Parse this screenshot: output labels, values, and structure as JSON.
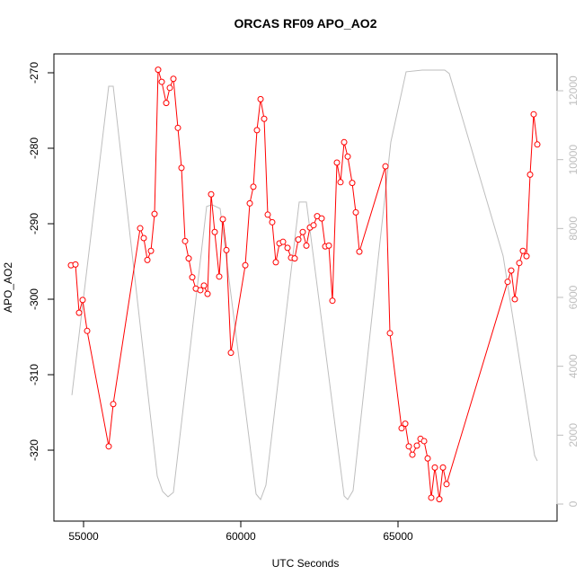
{
  "chart_data": {
    "type": "line",
    "title": "ORCAS RF09 APO_AO2",
    "x_label": "UTC Seconds",
    "y_label": "APO_AO2",
    "xlim": [
      54057,
      70057
    ],
    "xticks": [
      55000,
      60000,
      65000
    ],
    "ylim": [
      -329.4,
      -267.5
    ],
    "yticks": [
      -320,
      -310,
      -300,
      -290,
      -280,
      -270
    ],
    "y2lim": [
      -496,
      13070
    ],
    "y2ticks": [
      0,
      2000,
      4000,
      6000,
      8000,
      10000,
      12000
    ],
    "y2_color": "#bebebe",
    "series": [
      {
        "color": "#bebebe",
        "axis": "y2",
        "markers": false,
        "x": [
          54629,
          55800,
          55943,
          57343,
          57514,
          57686,
          57857,
          58914,
          59086,
          59343,
          60486,
          60629,
          60800,
          61857,
          62086,
          63286,
          63400,
          63571,
          64771,
          65257,
          65771,
          66486,
          66629,
          68343,
          69343,
          69429
        ],
        "values": [
          3160,
          12130,
          12130,
          810,
          365,
          210,
          340,
          8640,
          8690,
          8580,
          290,
          130,
          550,
          8770,
          8770,
          235,
          130,
          390,
          10510,
          12550,
          12600,
          12600,
          12500,
          7200,
          1410,
          1250
        ]
      },
      {
        "color": "#ff0000",
        "axis": "y",
        "markers": true,
        "x": [
          54600,
          54743,
          54857,
          54971,
          55114,
          55800,
          55943,
          56800,
          56914,
          57029,
          57143,
          57257,
          57371,
          57486,
          57629,
          57743,
          57857,
          58000,
          58114,
          58229,
          58343,
          58457,
          58571,
          58714,
          58829,
          58943,
          59057,
          59171,
          59314,
          59429,
          59543,
          59686,
          60143,
          60286,
          60400,
          60514,
          60629,
          60743,
          60857,
          60999,
          61114,
          61229,
          61343,
          61486,
          61600,
          61714,
          61829,
          61971,
          62086,
          62200,
          62314,
          62429,
          62571,
          62686,
          62800,
          62914,
          63057,
          63171,
          63286,
          63400,
          63543,
          63657,
          63771,
          64600,
          64743,
          65114,
          65229,
          65343,
          65457,
          65600,
          65714,
          65829,
          65943,
          66057,
          66171,
          66314,
          66429,
          66543,
          68486,
          68600,
          68714,
          68857,
          68971,
          69086,
          69200,
          69314,
          69429
        ],
        "values": [
          -295.5,
          -295.4,
          -301.8,
          -300.1,
          -304.2,
          -319.5,
          -313.9,
          -290.6,
          -291.9,
          -294.8,
          -293.6,
          -288.7,
          -269.6,
          -271.2,
          -274.0,
          -272.0,
          -270.8,
          -277.3,
          -282.6,
          -292.3,
          -294.6,
          -297.1,
          -298.6,
          -298.8,
          -298.2,
          -299.3,
          -286.1,
          -291.1,
          -297.0,
          -289.4,
          -293.5,
          -307.1,
          -295.5,
          -287.3,
          -285.1,
          -277.6,
          -273.5,
          -276.1,
          -288.8,
          -289.8,
          -295.1,
          -292.6,
          -292.4,
          -293.2,
          -294.5,
          -294.6,
          -292.1,
          -291.1,
          -292.9,
          -290.5,
          -290.2,
          -289.0,
          -289.3,
          -293.0,
          -292.9,
          -300.2,
          -281.9,
          -284.5,
          -279.2,
          -281.1,
          -284.6,
          -288.5,
          -293.7,
          -282.4,
          -304.5,
          -317.1,
          -316.5,
          -319.5,
          -320.6,
          -319.4,
          -318.5,
          -318.8,
          -321.1,
          -326.3,
          -322.3,
          -326.5,
          -322.3,
          -324.5,
          -297.7,
          -296.2,
          -300.0,
          -295.2,
          -293.6,
          -294.3,
          -283.5,
          -275.5,
          -279.5
        ]
      }
    ]
  }
}
